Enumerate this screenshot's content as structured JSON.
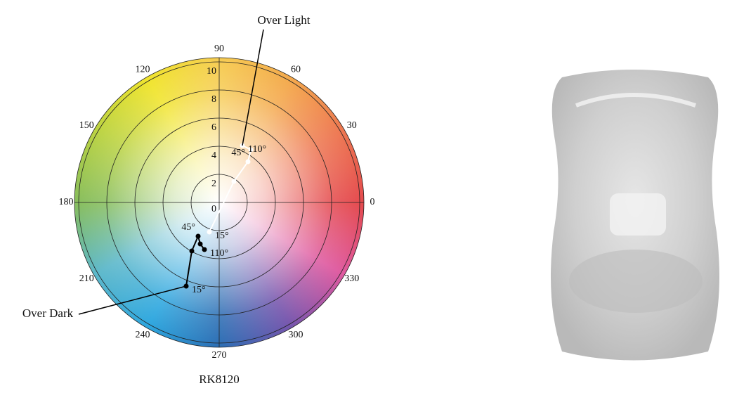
{
  "chart_data": {
    "type": "polar",
    "title": "RK8120",
    "xlim": [
      -10.3,
      10.3
    ],
    "ylim": [
      -10.3,
      10.3
    ],
    "rticks": [
      0,
      2,
      4,
      6,
      8,
      10
    ],
    "angle_ticks": [
      0,
      30,
      60,
      90,
      120,
      150,
      180,
      210,
      240,
      270,
      300,
      330
    ],
    "series": [
      {
        "name": "Over Light",
        "color": "#ffffff",
        "x": [
          -0.7,
          1.05,
          2.05,
          2.25,
          1.65
        ],
        "y": [
          -2.1,
          1.5,
          2.9,
          3.75,
          4.05
        ],
        "point_labels": [
          "15°",
          null,
          "45°",
          null,
          "110°"
        ]
      },
      {
        "name": "Over Dark",
        "color": "#000000",
        "x": [
          -2.35,
          -1.95,
          -1.5,
          -1.35,
          -1.05
        ],
        "y": [
          -5.95,
          -3.45,
          -2.4,
          -2.95,
          -3.35
        ],
        "point_labels": [
          "15°",
          null,
          "45°",
          null,
          "110°"
        ]
      }
    ]
  }
}
